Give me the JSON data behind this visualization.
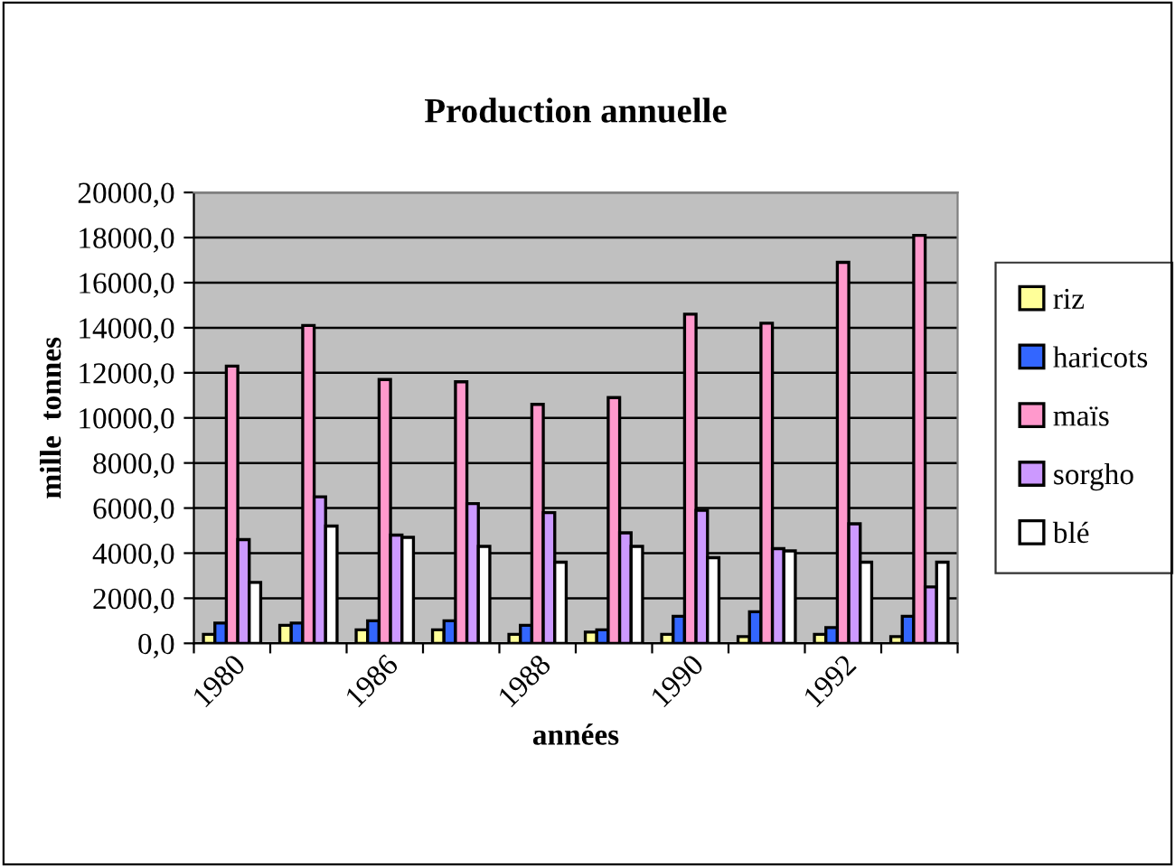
{
  "chart_data": {
    "type": "bar",
    "title": "Production annuelle",
    "xlabel": "années",
    "ylabel": "mille  tonnes",
    "categories": [
      "1980",
      null,
      "1986",
      null,
      "1988",
      null,
      "1990",
      null,
      "1992",
      null
    ],
    "series": [
      {
        "name": "riz",
        "color": "#ffff99",
        "values": [
          400,
          800,
          600,
          600,
          400,
          500,
          400,
          300,
          400,
          300
        ]
      },
      {
        "name": "haricots",
        "color": "#3366ff",
        "values": [
          900,
          900,
          1000,
          1000,
          800,
          600,
          1200,
          1400,
          700,
          1200
        ]
      },
      {
        "name": "maïs",
        "color": "#ff99cc",
        "values": [
          12300,
          14100,
          11700,
          11600,
          10600,
          10900,
          14600,
          14200,
          16900,
          18100
        ]
      },
      {
        "name": "sorgho",
        "color": "#cc99ff",
        "values": [
          4600,
          6500,
          4800,
          6200,
          5800,
          4900,
          5900,
          4200,
          5300,
          2500
        ]
      },
      {
        "name": "blé",
        "color": "#ffffff",
        "values": [
          2700,
          5200,
          4700,
          4300,
          3600,
          4300,
          3800,
          4100,
          3600,
          3600
        ]
      }
    ],
    "ylim": [
      0,
      20000
    ],
    "yticks": [
      {
        "value": 0,
        "label": "0,0"
      },
      {
        "value": 2000,
        "label": "2000,0"
      },
      {
        "value": 4000,
        "label": "4000,0"
      },
      {
        "value": 6000,
        "label": "6000,0"
      },
      {
        "value": 8000,
        "label": "8000,0"
      },
      {
        "value": 10000,
        "label": "10000,0"
      },
      {
        "value": 12000,
        "label": "12000,0"
      },
      {
        "value": 14000,
        "label": "14000,0"
      },
      {
        "value": 16000,
        "label": "16000,0"
      },
      {
        "value": 18000,
        "label": "18000,0"
      },
      {
        "value": 20000,
        "label": "20000,0"
      }
    ],
    "grid": "y",
    "legend": "right"
  }
}
